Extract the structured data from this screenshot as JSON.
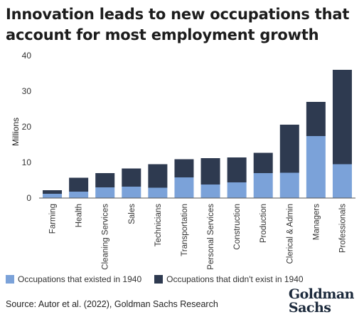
{
  "title": "Innovation leads to new occupations that account for most employment growth",
  "source": "Source: Autor et al. (2022), Goldman Sachs Research",
  "brand": {
    "line1": "Goldman",
    "line2": "Sachs"
  },
  "colors": {
    "existed": "#7ba2d9",
    "new": "#2e3a50",
    "axis": "#555555",
    "grid": "#bbbbbb"
  },
  "chart_data": {
    "type": "bar",
    "stacked": true,
    "ylabel": "Millions",
    "ylim": [
      0,
      40
    ],
    "yticks": [
      0,
      10,
      20,
      30,
      40
    ],
    "categories": [
      "Farming",
      "Health",
      "Cleaning Services",
      "Sales",
      "Technicians",
      "Transportation",
      "Personal Services",
      "Construction",
      "Production",
      "Clerical & Admin",
      "Managers",
      "Professionals"
    ],
    "series": [
      {
        "name": "Occupations that existed in 1940",
        "values": [
          1.2,
          1.8,
          3.0,
          3.2,
          2.9,
          5.8,
          3.8,
          4.4,
          7.0,
          7.1,
          17.4,
          9.5
        ]
      },
      {
        "name": "Occupations that didn't exist in 1940",
        "values": [
          1.0,
          3.9,
          4.0,
          5.1,
          6.6,
          5.1,
          7.4,
          7.0,
          5.7,
          13.5,
          9.6,
          26.5
        ]
      }
    ],
    "legend_position": "bottom-left",
    "grid": false
  }
}
